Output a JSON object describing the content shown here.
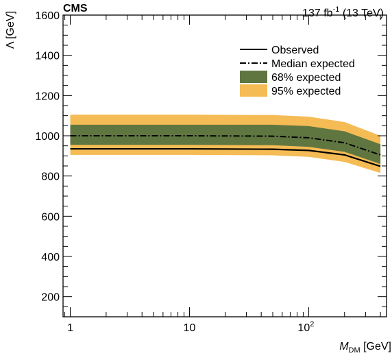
{
  "chart_data": {
    "type": "line",
    "experiment": "CMS",
    "luminosity": {
      "base": "137 fb",
      "exp": "-1",
      "energy": "(13 TeV)"
    },
    "xlabel": {
      "symbol": "M",
      "subscript": "DM",
      "unit": "[GeV]"
    },
    "ylabel": "Λ [GeV]",
    "xscale": "log",
    "xlim": [
      0.87,
      450
    ],
    "ylim": [
      100,
      1600
    ],
    "xticks": [
      {
        "value": 1,
        "label": "1"
      },
      {
        "value": 10,
        "label": "10"
      },
      {
        "value": 100,
        "label": "10",
        "exp": "2"
      }
    ],
    "yticks": [
      200,
      400,
      600,
      800,
      1000,
      1200,
      1400,
      1600
    ],
    "legend_position": "top-right",
    "legend": [
      {
        "label": "Observed",
        "style": "solid"
      },
      {
        "label": "Median expected",
        "style": "dashdot"
      },
      {
        "label": "68% expected",
        "style": "band"
      },
      {
        "label": "95% expected",
        "style": "band"
      }
    ],
    "x": [
      1,
      10,
      50,
      100,
      200,
      400
    ],
    "series": [
      {
        "name": "Observed",
        "values": [
          935,
          935,
          933,
          927,
          905,
          848
        ]
      },
      {
        "name": "Median expected",
        "values": [
          1000,
          1000,
          998,
          990,
          965,
          905
        ]
      },
      {
        "name": "68% expected",
        "lower": [
          955,
          955,
          953,
          945,
          920,
          860
        ],
        "upper": [
          1055,
          1055,
          1055,
          1048,
          1022,
          958
        ]
      },
      {
        "name": "95% expected",
        "lower": [
          905,
          905,
          903,
          895,
          870,
          815
        ],
        "upper": [
          1105,
          1105,
          1103,
          1095,
          1068,
          1000
        ]
      }
    ],
    "colors": {
      "band68": "#607641",
      "band95": "#f5bb54",
      "line": "#000000"
    }
  }
}
